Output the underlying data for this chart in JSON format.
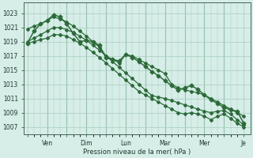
{
  "background_color": "#d6ede8",
  "grid_color": "#a8ccbb",
  "line_color": "#2d6b3a",
  "xlabel": "Pression niveau de la mer( hPa )",
  "yticks": [
    1007,
    1009,
    1011,
    1013,
    1015,
    1017,
    1019,
    1021,
    1023
  ],
  "ylim": [
    1006.0,
    1024.5
  ],
  "xtick_labels": [
    "",
    "Ven",
    "",
    "Dim",
    "",
    "Lun",
    "",
    "Mar",
    "",
    "Mer",
    "",
    "Je"
  ],
  "xtick_positions": [
    0,
    3,
    6,
    9,
    12,
    15,
    18,
    21,
    24,
    27,
    30,
    33
  ],
  "xlim": [
    -0.5,
    34
  ],
  "series": [
    {
      "x": [
        0,
        1,
        2,
        3,
        4,
        5,
        6,
        7,
        8,
        9,
        10,
        11,
        12,
        13,
        14,
        15,
        16,
        17,
        18,
        19,
        20,
        21,
        22,
        23,
        24,
        25,
        26,
        27,
        28,
        29,
        30,
        31,
        32,
        33
      ],
      "y": [
        1019.0,
        1019.5,
        1020.0,
        1020.5,
        1021.0,
        1021.0,
        1020.7,
        1020.3,
        1019.8,
        1019.2,
        1018.5,
        1017.8,
        1017.0,
        1016.2,
        1015.4,
        1014.6,
        1013.8,
        1013.0,
        1012.2,
        1011.4,
        1011.2,
        1011.0,
        1010.7,
        1010.4,
        1010.1,
        1009.8,
        1009.5,
        1009.2,
        1009.0,
        1009.2,
        1009.3,
        1008.8,
        1008.0,
        1007.3
      ],
      "marker": "D",
      "markersize": 2.0,
      "linewidth": 0.9
    },
    {
      "x": [
        0,
        1,
        2,
        3,
        4,
        5,
        6,
        7,
        8,
        9,
        10,
        11,
        12,
        13,
        14,
        15,
        16,
        17,
        18,
        19,
        20,
        21,
        22,
        23,
        24,
        25,
        26,
        27,
        28,
        29,
        30,
        31,
        32,
        33
      ],
      "y": [
        1020.8,
        1021.2,
        1021.5,
        1022.0,
        1022.5,
        1022.2,
        1021.8,
        1021.2,
        1020.5,
        1019.8,
        1019.0,
        1018.2,
        1017.0,
        1016.5,
        1016.0,
        1017.2,
        1017.0,
        1016.5,
        1016.0,
        1015.5,
        1015.0,
        1014.5,
        1013.0,
        1012.5,
        1012.2,
        1012.0,
        1011.8,
        1011.5,
        1011.0,
        1010.5,
        1010.0,
        1009.5,
        1009.0,
        1008.5
      ],
      "marker": "D",
      "markersize": 2.0,
      "linewidth": 0.9
    },
    {
      "x": [
        0,
        1,
        2,
        3,
        4,
        5,
        6,
        7,
        8,
        9,
        10,
        11,
        12,
        13,
        14,
        15,
        16,
        17,
        18,
        19,
        20,
        21,
        22,
        23,
        24,
        25,
        26,
        27,
        28,
        29,
        30,
        31,
        32,
        33
      ],
      "y": [
        1018.8,
        1020.5,
        1021.5,
        1022.0,
        1022.8,
        1022.5,
        1021.5,
        1020.2,
        1019.0,
        1019.2,
        1019.0,
        1018.5,
        1016.7,
        1016.5,
        1016.3,
        1017.2,
        1016.8,
        1016.2,
        1015.5,
        1014.8,
        1014.2,
        1013.5,
        1012.8,
        1012.2,
        1012.5,
        1012.8,
        1012.3,
        1011.5,
        1010.8,
        1010.3,
        1009.7,
        1009.4,
        1009.2,
        1007.5
      ],
      "marker": "D",
      "markersize": 2.5,
      "linewidth": 1.1
    },
    {
      "x": [
        0,
        1,
        2,
        3,
        4,
        5,
        6,
        7,
        8,
        9,
        10,
        11,
        12,
        13,
        14,
        15,
        16,
        17,
        18,
        19,
        20,
        21,
        22,
        23,
        24,
        25,
        26,
        27,
        28,
        29,
        30,
        31,
        32,
        33
      ],
      "y": [
        1018.8,
        1019.0,
        1019.3,
        1019.5,
        1020.0,
        1020.0,
        1019.8,
        1019.3,
        1018.8,
        1018.2,
        1017.5,
        1016.8,
        1016.0,
        1015.2,
        1014.4,
        1013.6,
        1012.8,
        1012.0,
        1011.5,
        1011.0,
        1010.5,
        1010.0,
        1009.5,
        1009.0,
        1008.8,
        1009.0,
        1008.8,
        1008.5,
        1008.0,
        1008.5,
        1008.8,
        1008.2,
        1007.5,
        1007.0
      ],
      "marker": "D",
      "markersize": 2.0,
      "linewidth": 0.9
    }
  ]
}
